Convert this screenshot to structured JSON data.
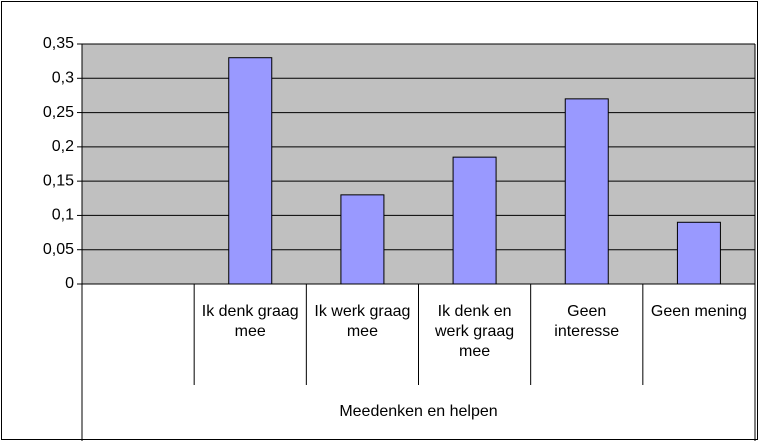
{
  "chart_data": {
    "type": "bar",
    "categories": [
      null,
      "Ik denk graag mee",
      "Ik werk graag mee",
      "Ik denk en werk graag mee",
      "Geen interesse",
      "Geen mening"
    ],
    "values": [
      null,
      0.33,
      0.13,
      0.185,
      0.27,
      0.09
    ],
    "group_label": "Meedenken en helpen",
    "color": "#9999ff",
    "ylim": [
      0,
      0.35
    ],
    "yticks": [
      0,
      {
        "value": 0.05,
        "label": "0,05"
      },
      {
        "value": 0.1,
        "label": "0,1"
      },
      {
        "value": 0.15,
        "label": "0,15"
      },
      {
        "value": 0.2,
        "label": "0,2"
      },
      {
        "value": 0.25,
        "label": "0,25"
      },
      {
        "value": 0.3,
        "label": "0,3"
      },
      {
        "value": 0.35,
        "label": "0,35"
      }
    ],
    "grid": true
  }
}
